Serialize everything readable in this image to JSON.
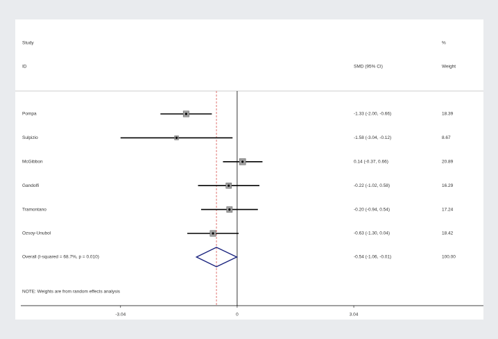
{
  "chart_data": {
    "type": "forest",
    "header": {
      "study": "Study",
      "id": "ID",
      "effect": "SMD (95% CI)",
      "percent": "%",
      "weight": "Weight"
    },
    "categories": [
      "Pompa",
      "Sulpizio",
      "McGibbon",
      "Gandolfi",
      "Tramontano",
      "Ozsoy-Unubol"
    ],
    "values": [
      -1.33,
      -1.58,
      0.14,
      -0.22,
      -0.2,
      -0.63
    ],
    "lower": [
      -2.0,
      -3.04,
      -0.37,
      -1.02,
      -0.94,
      -1.3
    ],
    "upper": [
      -0.66,
      -0.12,
      0.66,
      0.58,
      0.54,
      0.04
    ],
    "value_labels": [
      "-1.33 (-2.00, -0.66)",
      "-1.58 (-3.04, -0.12)",
      "0.14 (-0.37, 0.66)",
      "-0.22 (-1.02, 0.58)",
      "-0.20 (-0.94, 0.54)",
      "-0.63 (-1.30, 0.04)"
    ],
    "weights": [
      18.39,
      8.67,
      20.89,
      16.29,
      17.24,
      18.42
    ],
    "overall": {
      "label": "Overall  (I-squared = 68.7%, p = 0.010)",
      "value": -0.54,
      "lower": -1.06,
      "upper": -0.01,
      "value_label": "-0.54 (-1.06, -0.01)",
      "weight": {
        "value": 100,
        "label": "100.00"
      }
    },
    "note": "NOTE: Weights are from random effects analysis",
    "xlim": [
      -5.64,
      6.42
    ],
    "xticks": [
      -3.04,
      0,
      3.04
    ],
    "ref_line": 0,
    "box_color": "#a0a0a0",
    "diamond_color": "#1a237e",
    "pooled_line_color": "#d9534f"
  }
}
